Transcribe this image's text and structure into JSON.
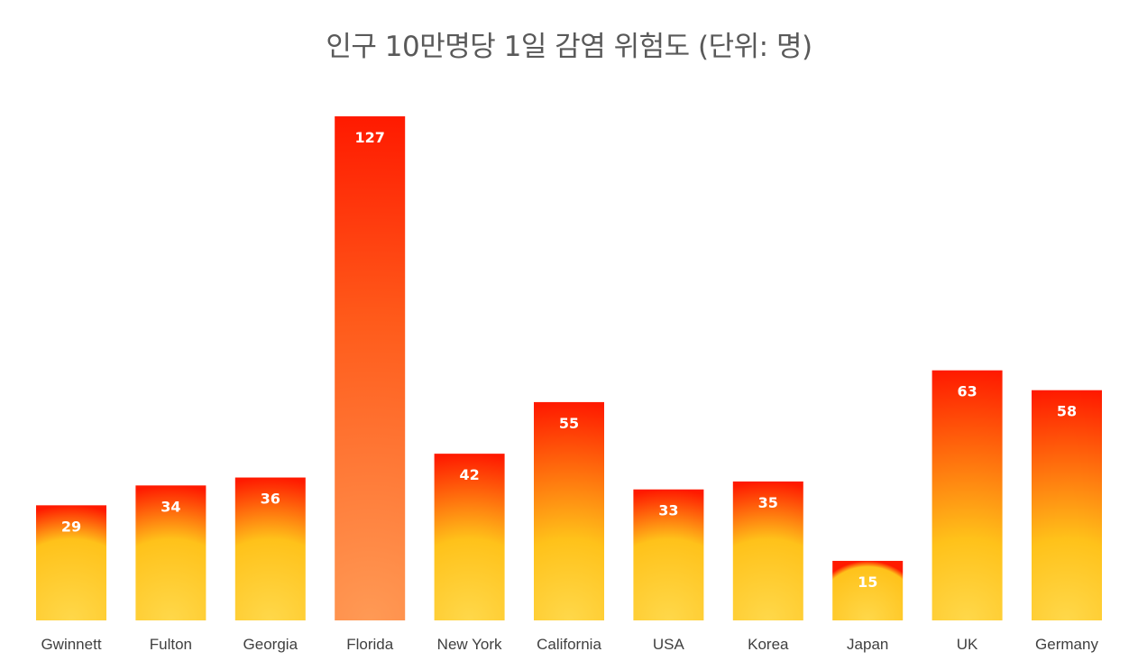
{
  "chart_data": {
    "type": "bar",
    "title": "인구 10만명당 1일 감염 위험도 (단위: 명)",
    "categories": [
      "Gwinnett",
      "Fulton",
      "Georgia",
      "Florida",
      "New York",
      "California",
      "USA",
      "Korea",
      "Japan",
      "UK",
      "Germany"
    ],
    "values": [
      29,
      34,
      36,
      127,
      42,
      55,
      33,
      35,
      15,
      63,
      58
    ],
    "xlabel": "",
    "ylabel": "",
    "ylim": [
      0,
      127
    ],
    "grid": false,
    "legend": "none",
    "colors": {
      "bar_top": "#ff1a00",
      "bar_bottom": "#ffd23a",
      "title": "#595959",
      "label": "#404040",
      "value_label": "#ffffff"
    }
  }
}
